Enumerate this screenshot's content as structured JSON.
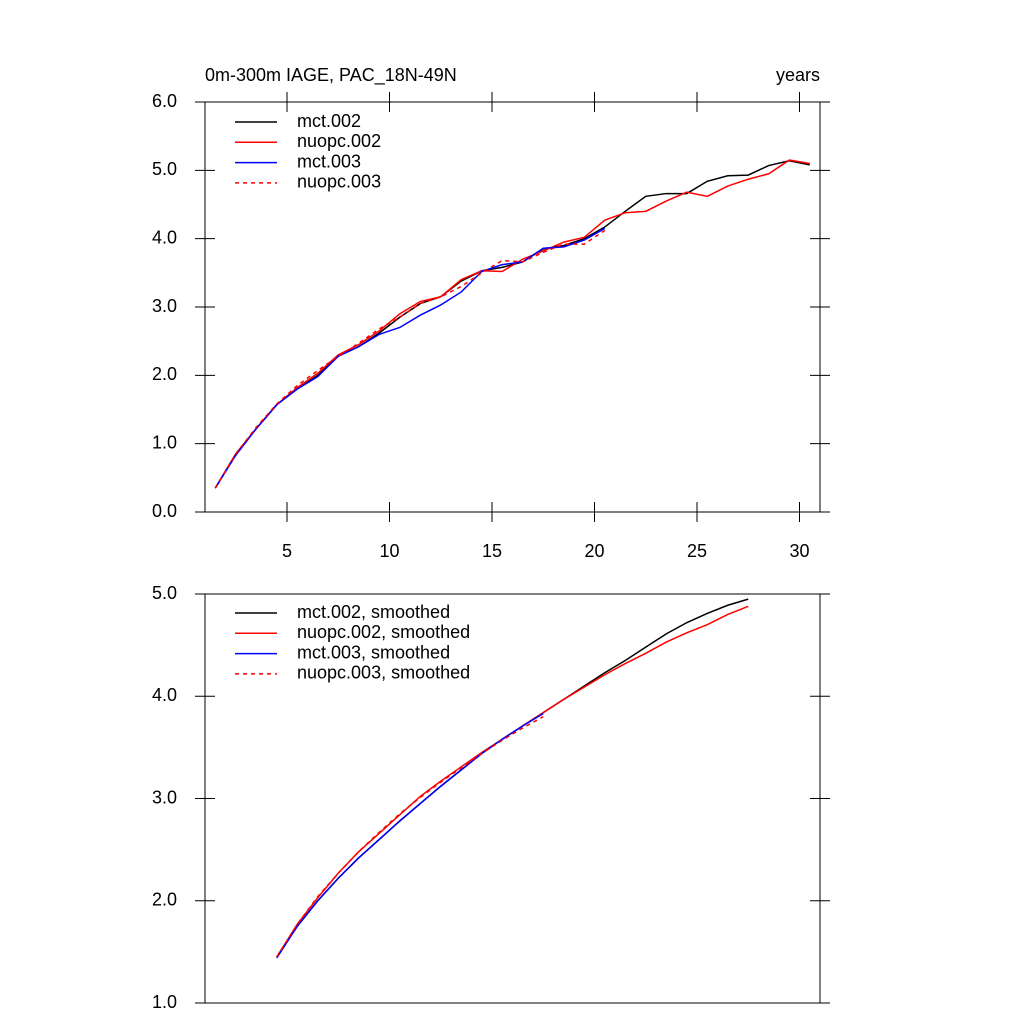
{
  "chart_data": [
    {
      "type": "line",
      "title": "0m-300m IAGE, PAC_18N-49N",
      "subtitle": "years",
      "x": [
        1.5,
        2.5,
        3.5,
        4.5,
        5.5,
        6.5,
        7.5,
        8.5,
        9.5,
        10.5,
        11.5,
        12.5,
        13.5,
        14.5,
        15.5,
        16.5,
        17.5,
        18.5,
        19.5,
        20.5,
        21.5,
        22.5,
        23.5,
        24.5,
        25.5,
        26.5,
        27.5,
        28.5,
        29.5,
        30.5
      ],
      "series": [
        {
          "name": "mct.002",
          "color": "#000000",
          "dashed": false,
          "values": [
            0.35,
            0.85,
            1.22,
            1.57,
            1.8,
            2.0,
            2.28,
            2.42,
            2.62,
            2.85,
            3.05,
            3.15,
            3.38,
            3.53,
            3.58,
            3.66,
            3.85,
            3.9,
            4.0,
            4.17,
            4.4,
            4.62,
            4.66,
            4.66,
            4.84,
            4.92,
            4.93,
            5.07,
            5.14,
            5.08
          ]
        },
        {
          "name": "nuopc.002",
          "color": "#ff0000",
          "dashed": false,
          "values": [
            0.35,
            0.85,
            1.22,
            1.57,
            1.82,
            2.03,
            2.3,
            2.45,
            2.65,
            2.9,
            3.08,
            3.15,
            3.4,
            3.53,
            3.52,
            3.7,
            3.82,
            3.95,
            4.02,
            4.27,
            4.38,
            4.4,
            4.55,
            4.68,
            4.62,
            4.77,
            4.87,
            4.95,
            5.15,
            5.1
          ]
        },
        {
          "name": "mct.003",
          "color": "#0000ff",
          "dashed": false,
          "values": [
            0.35,
            0.83,
            1.22,
            1.57,
            1.8,
            1.98,
            2.28,
            2.42,
            2.6,
            2.7,
            2.88,
            3.03,
            3.22,
            3.52,
            3.62,
            3.66,
            3.86,
            3.88,
            3.98,
            4.15,
            null,
            null,
            null,
            null,
            null,
            null,
            null,
            null,
            null,
            null
          ]
        },
        {
          "name": "nuopc.003",
          "color": "#ff0000",
          "dashed": true,
          "values": [
            0.35,
            0.85,
            1.24,
            1.58,
            1.85,
            2.07,
            2.28,
            2.47,
            2.68,
            2.85,
            3.05,
            3.15,
            3.3,
            3.5,
            3.68,
            3.66,
            3.8,
            3.92,
            3.92,
            4.12,
            null,
            null,
            null,
            null,
            null,
            null,
            null,
            null,
            null,
            null
          ]
        }
      ],
      "xlim": [
        1,
        31
      ],
      "xticks": [
        5,
        10,
        15,
        20,
        25,
        30
      ],
      "ylim": [
        0,
        6
      ],
      "yticks": [
        {
          "value": 0,
          "label": "0.0"
        },
        {
          "value": 1,
          "label": "1.0"
        },
        {
          "value": 2,
          "label": "2.0"
        },
        {
          "value": 3,
          "label": "3.0"
        },
        {
          "value": 4,
          "label": "4.0"
        },
        {
          "value": 5,
          "label": "5.0"
        },
        {
          "value": 6,
          "label": "6.0"
        }
      ]
    },
    {
      "type": "line",
      "x": [
        4.5,
        5.5,
        6.5,
        7.5,
        8.5,
        9.5,
        10.5,
        11.5,
        12.5,
        13.5,
        14.5,
        15.5,
        16.5,
        17.5,
        18.5,
        19.5,
        20.5,
        21.5,
        22.5,
        23.5,
        24.5,
        25.5,
        26.5,
        27.5
      ],
      "series": [
        {
          "name": "mct.002, smoothed",
          "color": "#000000",
          "dashed": false,
          "values": [
            1.45,
            1.75,
            2.0,
            2.22,
            2.42,
            2.6,
            2.78,
            2.95,
            3.12,
            3.28,
            3.44,
            3.58,
            3.71,
            3.84,
            3.97,
            4.1,
            4.23,
            4.35,
            4.48,
            4.61,
            4.72,
            4.81,
            4.89,
            4.95
          ]
        },
        {
          "name": "nuopc.002, smoothed",
          "color": "#ff0000",
          "dashed": false,
          "values": [
            1.45,
            1.77,
            2.03,
            2.27,
            2.48,
            2.66,
            2.84,
            3.02,
            3.17,
            3.31,
            3.45,
            3.58,
            3.71,
            3.84,
            3.97,
            4.09,
            4.21,
            4.32,
            4.42,
            4.53,
            4.62,
            4.7,
            4.8,
            4.88
          ]
        },
        {
          "name": "mct.003, smoothed",
          "color": "#0000ff",
          "dashed": false,
          "values": [
            1.44,
            1.75,
            2.0,
            2.22,
            2.42,
            2.6,
            2.78,
            2.95,
            3.12,
            3.28,
            3.44,
            3.58,
            3.71,
            3.83,
            null,
            null,
            null,
            null,
            null,
            null,
            null,
            null,
            null,
            null
          ]
        },
        {
          "name": "nuopc.003, smoothed",
          "color": "#ff0000",
          "dashed": true,
          "values": [
            1.45,
            1.77,
            2.04,
            2.27,
            2.48,
            2.67,
            2.85,
            3.01,
            3.16,
            3.3,
            3.44,
            3.57,
            3.69,
            3.8,
            null,
            null,
            null,
            null,
            null,
            null,
            null,
            null,
            null,
            null
          ]
        }
      ],
      "xlim": [
        1,
        31
      ],
      "ylim": [
        1,
        5
      ],
      "yticks": [
        {
          "value": 1,
          "label": "1.0"
        },
        {
          "value": 2,
          "label": "2.0"
        },
        {
          "value": 3,
          "label": "3.0"
        },
        {
          "value": 4,
          "label": "4.0"
        },
        {
          "value": 5,
          "label": "5.0"
        }
      ]
    }
  ]
}
